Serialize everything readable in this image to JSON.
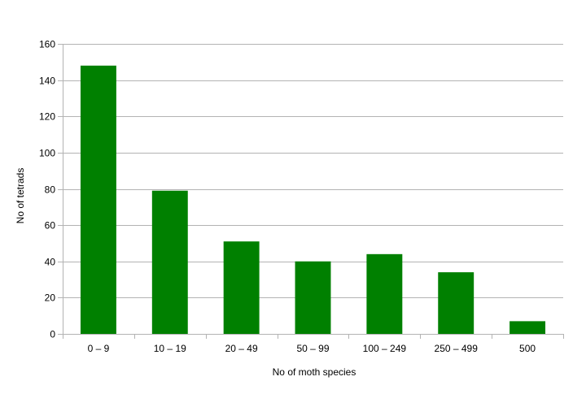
{
  "chart_data": {
    "type": "bar",
    "title": "",
    "xlabel": "No of moth species",
    "ylabel": "No of tetrads",
    "categories": [
      "0 – 9",
      "10 – 19",
      "20 – 49",
      "50 – 99",
      "100 – 249",
      "250 – 499",
      "500"
    ],
    "values": [
      148,
      79,
      51,
      40,
      44,
      34,
      7
    ],
    "ylim": [
      0,
      160
    ],
    "yticks": [
      0,
      20,
      40,
      60,
      80,
      100,
      120,
      140,
      160
    ],
    "grid": true,
    "legend": "none",
    "bar_color": "#008000",
    "grid_color": "#b3b3b3"
  }
}
